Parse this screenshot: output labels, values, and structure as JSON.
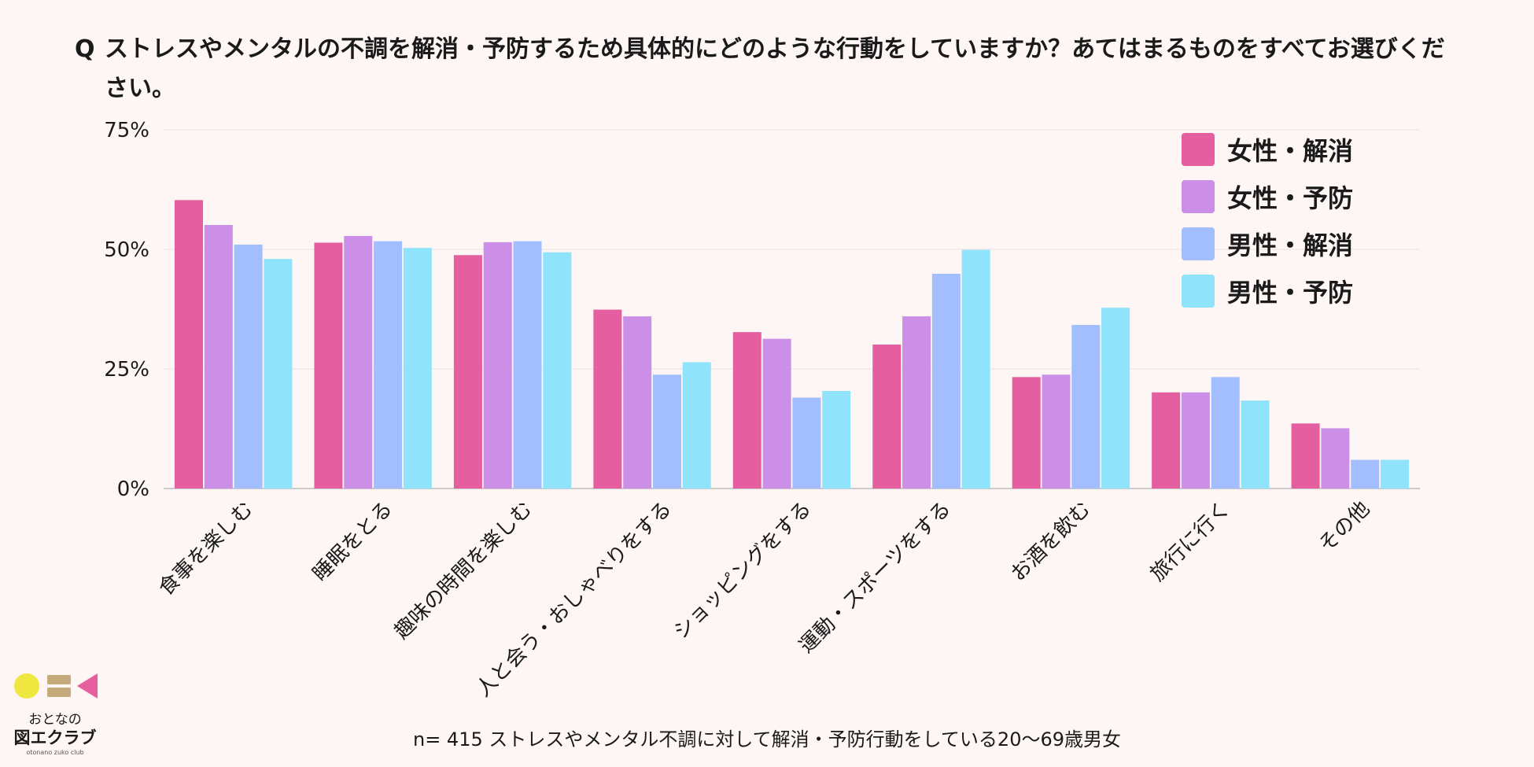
{
  "title": {
    "q": "Q",
    "text": "ストレスやメンタルの不調を解消・予防するため具体的にどのような行動をしていますか？あてはまるものをすべてお選びください。"
  },
  "footnote": "n= 415 ストレスやメンタル不調に対して解消・予防行動をしている20〜69歳男女",
  "logo": {
    "line1": "おとなの",
    "line2": "図エクラブ",
    "line3": "otonano zuko club"
  },
  "colors": {
    "female_resolve": "#e55e9f",
    "female_prevent": "#cc8fe8",
    "male_resolve": "#a2befe",
    "male_prevent": "#8fe3fb"
  },
  "chart_data": {
    "type": "bar",
    "categories": [
      "食事を楽しむ",
      "睡眠をとる",
      "趣味の時間を楽しむ",
      "人と会う・おしゃべりをする",
      "ショッピングをする",
      "運動・スポーツをする",
      "お酒を飲む",
      "旅行に行く",
      "その他"
    ],
    "series": [
      {
        "name": "女性・解消",
        "color": "#e55e9f",
        "values": [
          60.3,
          51.4,
          48.8,
          37.4,
          32.7,
          30.1,
          23.3,
          20.1,
          13.6
        ]
      },
      {
        "name": "女性・予防",
        "color": "#cc8fe8",
        "values": [
          55.1,
          52.8,
          51.5,
          36.0,
          31.3,
          36.0,
          23.8,
          20.1,
          12.6
        ]
      },
      {
        "name": "男性・解消",
        "color": "#a2befe",
        "values": [
          51.0,
          51.7,
          51.7,
          23.8,
          19.0,
          44.9,
          34.2,
          23.3,
          6.0
        ]
      },
      {
        "name": "男性・予防",
        "color": "#8fe3fb",
        "values": [
          48.0,
          50.3,
          49.4,
          26.4,
          20.4,
          49.9,
          37.8,
          18.4,
          6.0
        ]
      }
    ],
    "yticks": [
      "0%",
      "25%",
      "50%",
      "75%"
    ],
    "ylim": [
      0,
      75
    ],
    "grid": true,
    "legend_position": "top-right"
  }
}
